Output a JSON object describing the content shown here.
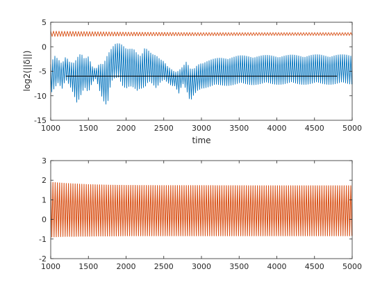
{
  "colors": {
    "series_blue": "#0072BD",
    "series_orange": "#D95319",
    "reference": "#000000",
    "axes": "#262626"
  },
  "chart_data": [
    {
      "type": "line",
      "title": "",
      "xlabel": "time",
      "ylabel": "log2(||δ||)",
      "xlim": [
        1000,
        5000
      ],
      "ylim": [
        -15,
        5
      ],
      "xticks": [
        1000,
        1500,
        2000,
        2500,
        3000,
        3500,
        4000,
        4500,
        5000
      ],
      "yticks": [
        -15,
        -10,
        -5,
        0,
        5
      ],
      "grid": false,
      "series": [
        {
          "color": "#D95319",
          "style": "thin oscillating band",
          "x": [
            1000,
            2000,
            3000,
            4000,
            5000
          ],
          "low": [
            2.1,
            2.2,
            2.25,
            2.3,
            2.3
          ],
          "high": [
            3.2,
            3.0,
            2.9,
            2.9,
            2.9
          ]
        },
        {
          "color": "#0072BD",
          "style": "oscillating envelope",
          "x": [
            1000,
            1050,
            1100,
            1150,
            1200,
            1250,
            1300,
            1350,
            1400,
            1450,
            1500,
            1550,
            1600,
            1650,
            1700,
            1750,
            1800,
            1850,
            1900,
            1950,
            2000,
            2050,
            2100,
            2150,
            2200,
            2250,
            2300,
            2350,
            2400,
            2450,
            2500,
            2550,
            2600,
            2650,
            2700,
            2750,
            2800,
            2850,
            2900,
            2950,
            3000,
            3250,
            3500,
            4000,
            4500,
            5000
          ],
          "low": [
            -9.5,
            -8.5,
            -7.5,
            -9.0,
            -7.0,
            -8.0,
            -9.5,
            -11.5,
            -10.0,
            -8.5,
            -10.0,
            -7.5,
            -6.5,
            -9.0,
            -11.0,
            -12.3,
            -7.5,
            -7.0,
            -6.5,
            -8.0,
            -8.5,
            -8.0,
            -8.5,
            -9.5,
            -9.0,
            -8.5,
            -7.0,
            -7.5,
            -8.5,
            -7.5,
            -7.0,
            -7.5,
            -8.0,
            -8.0,
            -9.5,
            -7.5,
            -9.0,
            -11.8,
            -10.0,
            -9.0,
            -8.5,
            -8.0,
            -7.8,
            -7.7,
            -7.7,
            -7.7
          ],
          "high": [
            -3.0,
            -1.5,
            -2.5,
            -3.5,
            -2.0,
            -3.0,
            -3.0,
            -1.5,
            -1.0,
            -2.5,
            -2.0,
            -4.0,
            -4.5,
            -3.0,
            -3.0,
            -1.5,
            -0.5,
            0.5,
            0.8,
            0.7,
            0.3,
            0.0,
            -0.3,
            -1.5,
            -2.0,
            0.0,
            -0.5,
            -1.0,
            -1.5,
            -2.5,
            -3.0,
            -4.0,
            -4.5,
            -5.0,
            -4.5,
            -4.0,
            -3.0,
            -4.5,
            -4.5,
            -3.5,
            -3.0,
            -2.2,
            -1.8,
            -1.7,
            -1.6,
            -1.6
          ]
        },
        {
          "color": "#000000",
          "style": "reference line",
          "x": [
            1200,
            4800
          ],
          "y": [
            -6.0,
            -6.0
          ]
        }
      ]
    },
    {
      "type": "line",
      "title": "",
      "xlabel": "",
      "ylabel": "",
      "xlim": [
        1000,
        5000
      ],
      "ylim": [
        -2,
        3
      ],
      "xticks": [
        1000,
        1500,
        2000,
        2500,
        3000,
        3500,
        4000,
        4500,
        5000
      ],
      "yticks": [
        -2,
        -1,
        0,
        1,
        2,
        3
      ],
      "grid": false,
      "series": [
        {
          "color": "#D95319",
          "style": "dense oscillation",
          "x": [
            1000,
            1100,
            1200,
            1300,
            1400,
            1500,
            1600,
            1700,
            1800,
            2000,
            2500,
            3000,
            4000,
            5000
          ],
          "low": [
            -0.9,
            -0.88,
            -0.87,
            -0.87,
            -0.86,
            -0.86,
            -0.85,
            -0.85,
            -0.85,
            -0.84,
            -0.84,
            -0.84,
            -0.84,
            -0.84
          ],
          "high": [
            1.9,
            1.87,
            1.84,
            1.82,
            1.8,
            1.78,
            1.77,
            1.76,
            1.75,
            1.74,
            1.73,
            1.73,
            1.72,
            1.72
          ]
        }
      ]
    }
  ]
}
